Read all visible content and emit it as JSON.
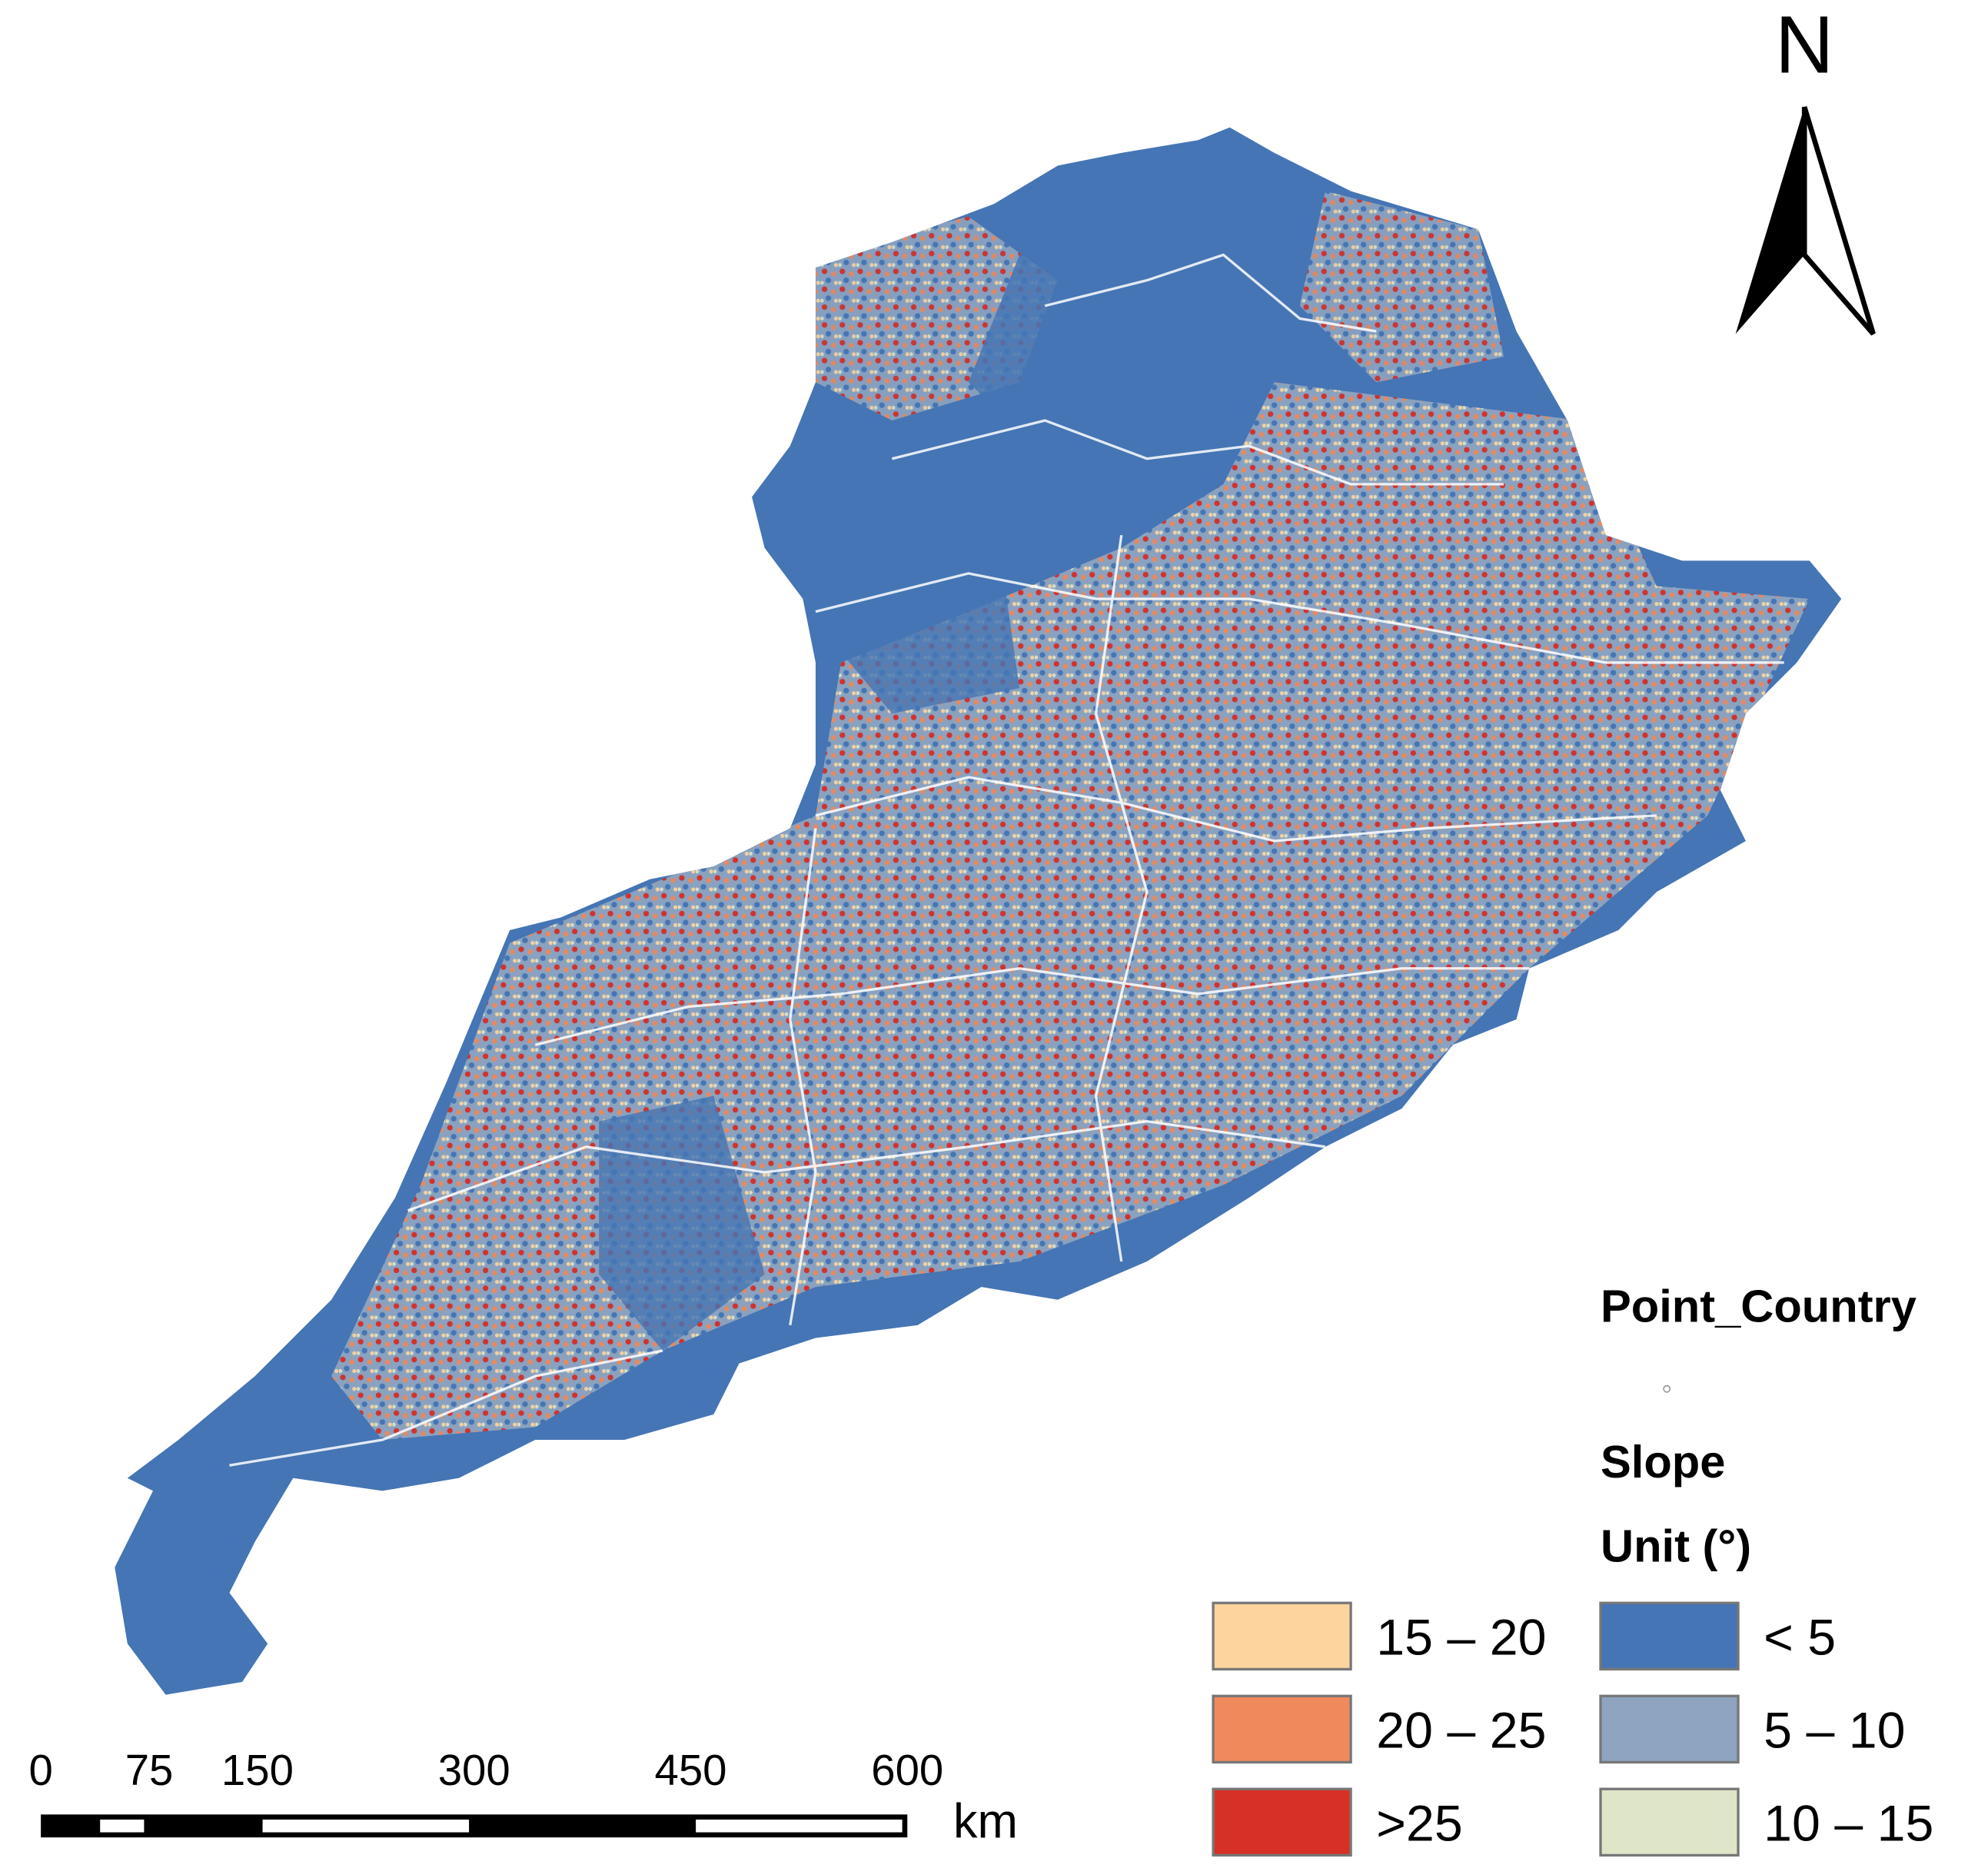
{
  "north": "N",
  "legend": {
    "title": "Point_Country",
    "layer": "Slope",
    "unit": "Unit (°)",
    "items": [
      {
        "label": "15 – 20",
        "color": "#fdd49e"
      },
      {
        "label": "20 – 25",
        "color": "#f08a5c"
      },
      {
        "label": ">25",
        "color": "#d73027"
      },
      {
        "label": "< 5",
        "color": "#4575b4"
      },
      {
        "label": "5 – 10",
        "color": "#8ea4c0"
      },
      {
        "label": "10 – 15",
        "color": "#dfe6c8"
      }
    ]
  },
  "scale": {
    "ticks": [
      0,
      75,
      150,
      300,
      450,
      600
    ],
    "unit": "km"
  }
}
